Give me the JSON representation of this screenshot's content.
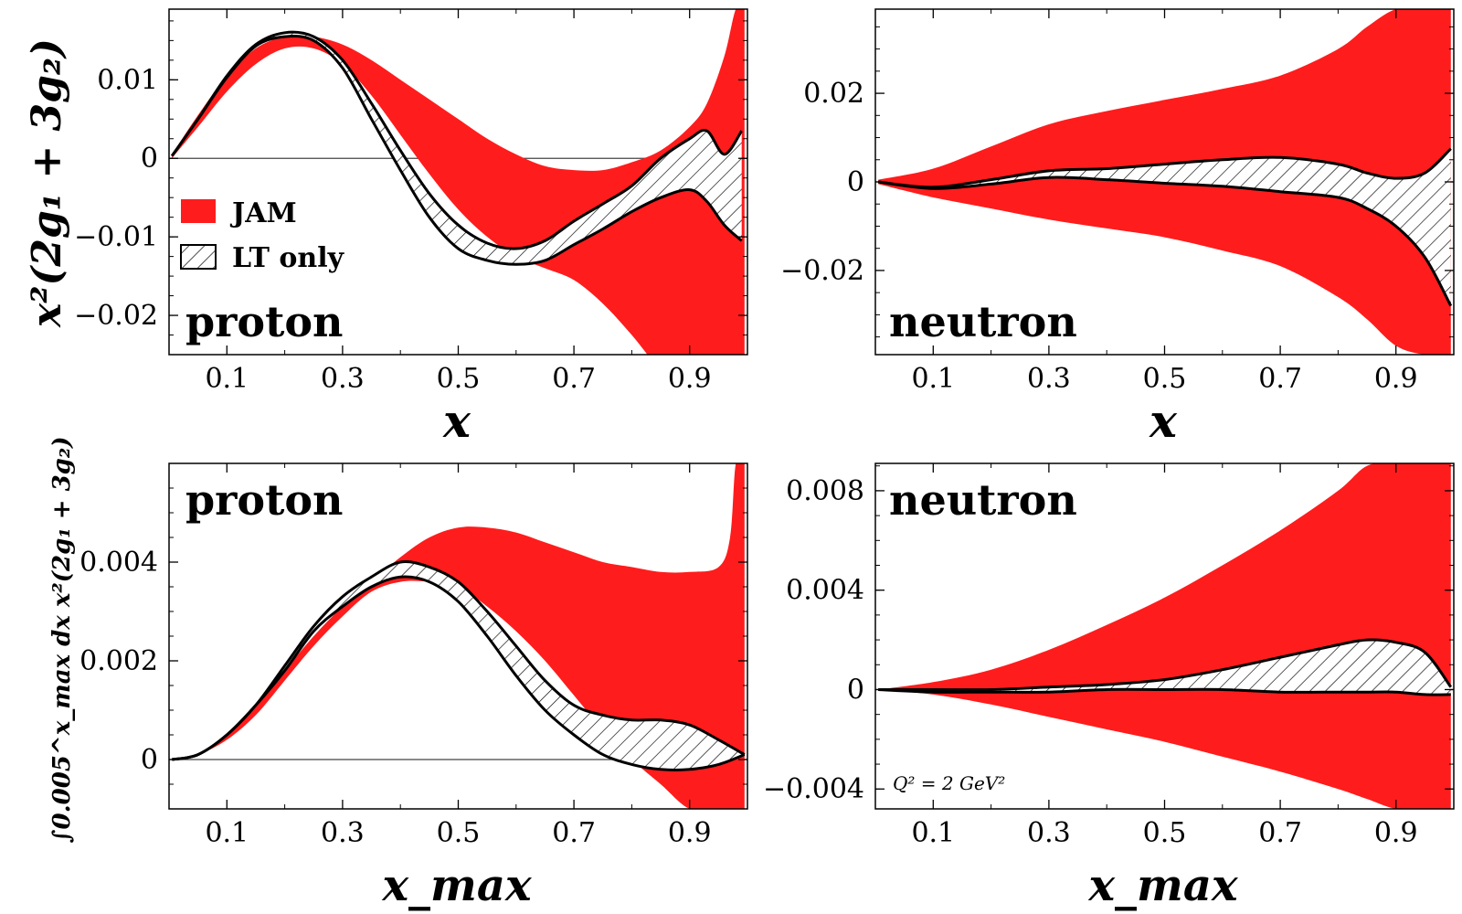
{
  "colors": {
    "jam_band": "#ff1c1c",
    "lt_hatch": "#000000"
  },
  "legend": {
    "jam": "JAM",
    "lt": "LT only"
  },
  "annotation": "Q² = 2 GeV²",
  "chart_data": [
    {
      "type": "area",
      "panel_label": "proton",
      "xlabel": "x",
      "ylabel": "x²(2g₁ + 3g₂)",
      "xlim": [
        0.0,
        1.0
      ],
      "ylim": [
        -0.025,
        0.019
      ],
      "xticks": [
        0.1,
        0.3,
        0.5,
        0.7,
        0.9
      ],
      "xtick_labels": [
        "0.1",
        "0.3",
        "0.5",
        "0.7",
        "0.9"
      ],
      "yticks": [
        -0.02,
        -0.01,
        0,
        0.01
      ],
      "ytick_labels": [
        "−0.02",
        "−0.01",
        "0",
        "0.01"
      ],
      "series": [
        {
          "name": "JAM",
          "x": [
            0.005,
            0.05,
            0.1,
            0.15,
            0.2,
            0.25,
            0.3,
            0.35,
            0.4,
            0.45,
            0.5,
            0.55,
            0.6,
            0.65,
            0.7,
            0.75,
            0.8,
            0.85,
            0.9,
            0.93,
            0.96,
            0.98,
            0.995
          ],
          "upper": [
            0.0005,
            0.0055,
            0.0105,
            0.014,
            0.0155,
            0.0155,
            0.0145,
            0.0125,
            0.01,
            0.0075,
            0.005,
            0.0025,
            0.0005,
            -0.001,
            -0.0015,
            -0.0015,
            -0.0005,
            0.001,
            0.004,
            0.007,
            0.013,
            0.019,
            0.019
          ],
          "lower": [
            0.0,
            0.004,
            0.0085,
            0.012,
            0.014,
            0.014,
            0.012,
            0.008,
            0.003,
            -0.002,
            -0.0065,
            -0.01,
            -0.0125,
            -0.014,
            -0.0155,
            -0.0185,
            -0.0225,
            -0.027,
            -0.03,
            -0.03,
            -0.03,
            -0.03,
            -0.03
          ]
        },
        {
          "name": "LT only",
          "x": [
            0.005,
            0.05,
            0.1,
            0.15,
            0.2,
            0.25,
            0.3,
            0.35,
            0.4,
            0.45,
            0.5,
            0.55,
            0.6,
            0.65,
            0.7,
            0.75,
            0.8,
            0.85,
            0.9,
            0.93,
            0.96,
            0.99
          ],
          "upper": [
            0.0003,
            0.005,
            0.0105,
            0.0145,
            0.016,
            0.0155,
            0.0125,
            0.007,
            0.001,
            -0.0045,
            -0.0085,
            -0.0108,
            -0.0115,
            -0.0105,
            -0.008,
            -0.0058,
            -0.0035,
            0.0,
            0.0025,
            0.0035,
            0.0005,
            0.0035
          ],
          "lower": [
            0.0003,
            0.005,
            0.0103,
            0.0143,
            0.0155,
            0.015,
            0.0115,
            0.005,
            -0.0015,
            -0.0075,
            -0.0115,
            -0.013,
            -0.0135,
            -0.013,
            -0.011,
            -0.009,
            -0.0068,
            -0.005,
            -0.004,
            -0.0055,
            -0.0085,
            -0.0105
          ]
        }
      ],
      "legend": {
        "position": "center-left"
      }
    },
    {
      "type": "area",
      "panel_label": "neutron",
      "xlabel": "x",
      "ylabel": "",
      "xlim": [
        0.0,
        1.0
      ],
      "ylim": [
        -0.039,
        0.039
      ],
      "xticks": [
        0.1,
        0.3,
        0.5,
        0.7,
        0.9
      ],
      "xtick_labels": [
        "0.1",
        "0.3",
        "0.5",
        "0.7",
        "0.9"
      ],
      "yticks": [
        -0.02,
        0,
        0.02
      ],
      "ytick_labels": [
        "−0.02",
        "0",
        "0.02"
      ],
      "series": [
        {
          "name": "JAM",
          "x": [
            0.005,
            0.1,
            0.2,
            0.3,
            0.4,
            0.5,
            0.6,
            0.7,
            0.8,
            0.85,
            0.9,
            0.95,
            0.995
          ],
          "upper": [
            0.0005,
            0.003,
            0.008,
            0.013,
            0.016,
            0.0185,
            0.021,
            0.024,
            0.03,
            0.035,
            0.039,
            0.039,
            0.039
          ],
          "lower": [
            -0.0005,
            -0.0035,
            -0.006,
            -0.0085,
            -0.0105,
            -0.0125,
            -0.0155,
            -0.019,
            -0.026,
            -0.031,
            -0.037,
            -0.039,
            -0.039
          ]
        },
        {
          "name": "LT only",
          "x": [
            0.005,
            0.1,
            0.2,
            0.3,
            0.4,
            0.5,
            0.6,
            0.7,
            0.8,
            0.85,
            0.9,
            0.95,
            0.995
          ],
          "upper": [
            0.0,
            -0.0012,
            0.0005,
            0.0025,
            0.003,
            0.004,
            0.005,
            0.0055,
            0.004,
            0.002,
            0.0008,
            0.002,
            0.0075
          ],
          "lower": [
            0.0,
            -0.0015,
            -0.0005,
            0.001,
            0.0005,
            -0.0003,
            -0.001,
            -0.0022,
            -0.0035,
            -0.006,
            -0.01,
            -0.017,
            -0.028
          ]
        }
      ]
    },
    {
      "type": "area",
      "panel_label": "proton",
      "xlabel": "x_max",
      "ylabel": "∫0.005^x_max dx x²(2g₁ + 3g₂)",
      "xlim": [
        0.0,
        1.0
      ],
      "ylim": [
        -0.001,
        0.006
      ],
      "xticks": [
        0.1,
        0.3,
        0.5,
        0.7,
        0.9
      ],
      "xtick_labels": [
        "0.1",
        "0.3",
        "0.5",
        "0.7",
        "0.9"
      ],
      "yticks": [
        0,
        0.002,
        0.004
      ],
      "ytick_labels": [
        "0",
        "0.002",
        "0.004"
      ],
      "series": [
        {
          "name": "JAM",
          "x": [
            0.005,
            0.05,
            0.1,
            0.15,
            0.2,
            0.25,
            0.3,
            0.35,
            0.4,
            0.45,
            0.5,
            0.55,
            0.6,
            0.65,
            0.7,
            0.75,
            0.8,
            0.85,
            0.9,
            0.95,
            0.97,
            0.98,
            0.995
          ],
          "upper": [
            0.0,
            0.0001,
            0.0005,
            0.0011,
            0.0018,
            0.0025,
            0.0031,
            0.0036,
            0.0041,
            0.0045,
            0.0047,
            0.0047,
            0.0046,
            0.0044,
            0.0042,
            0.004,
            0.0039,
            0.0038,
            0.0038,
            0.0039,
            0.0045,
            0.006,
            0.006
          ],
          "lower": [
            0.0,
            0.0001,
            0.0004,
            0.0009,
            0.0016,
            0.0023,
            0.0029,
            0.0034,
            0.0036,
            0.0036,
            0.0035,
            0.0031,
            0.0026,
            0.002,
            0.0013,
            0.0006,
            0.0,
            -0.0005,
            -0.001,
            -0.001,
            -0.001,
            -0.001,
            -0.001
          ]
        },
        {
          "name": "LT only",
          "x": [
            0.005,
            0.05,
            0.1,
            0.15,
            0.2,
            0.25,
            0.3,
            0.35,
            0.4,
            0.45,
            0.5,
            0.55,
            0.6,
            0.65,
            0.7,
            0.75,
            0.8,
            0.85,
            0.9,
            0.95,
            0.995
          ],
          "upper": [
            0.0,
            0.0001,
            0.0005,
            0.0011,
            0.0019,
            0.0027,
            0.0033,
            0.0037,
            0.004,
            0.0039,
            0.0036,
            0.003,
            0.0023,
            0.0016,
            0.0011,
            0.0009,
            0.0008,
            0.0008,
            0.0007,
            0.0004,
            0.0001
          ],
          "lower": [
            0.0,
            0.0001,
            0.0005,
            0.0011,
            0.0018,
            0.0026,
            0.0031,
            0.0035,
            0.0037,
            0.0036,
            0.0032,
            0.0025,
            0.0017,
            0.001,
            0.0005,
            0.0001,
            -0.0001,
            -0.0002,
            -0.0002,
            -0.0001,
            0.0001
          ]
        }
      ]
    },
    {
      "type": "area",
      "panel_label": "neutron",
      "xlabel": "x_max",
      "ylabel": "",
      "xlim": [
        0.0,
        1.0
      ],
      "ylim": [
        -0.0048,
        0.0091
      ],
      "xticks": [
        0.1,
        0.3,
        0.5,
        0.7,
        0.9
      ],
      "xtick_labels": [
        "0.1",
        "0.3",
        "0.5",
        "0.7",
        "0.9"
      ],
      "yticks": [
        -0.004,
        0,
        0.004,
        0.008
      ],
      "ytick_labels": [
        "−0.004",
        "0",
        "0.004",
        "0.008"
      ],
      "annotation": "Q² = 2 GeV²",
      "series": [
        {
          "name": "JAM",
          "x": [
            0.005,
            0.1,
            0.2,
            0.3,
            0.4,
            0.5,
            0.6,
            0.7,
            0.8,
            0.85,
            0.9,
            0.95,
            0.995
          ],
          "upper": [
            0.0,
            0.0003,
            0.0008,
            0.0016,
            0.0026,
            0.0037,
            0.005,
            0.0064,
            0.008,
            0.009,
            0.0091,
            0.0091,
            0.0091
          ],
          "lower": [
            0.0,
            -0.0002,
            -0.0006,
            -0.0011,
            -0.0016,
            -0.0021,
            -0.0027,
            -0.0033,
            -0.004,
            -0.0044,
            -0.0048,
            -0.0048,
            -0.0048
          ]
        },
        {
          "name": "LT only",
          "x": [
            0.005,
            0.1,
            0.2,
            0.3,
            0.4,
            0.5,
            0.6,
            0.7,
            0.8,
            0.85,
            0.9,
            0.95,
            0.995
          ],
          "upper": [
            0.0,
            0.0,
            0.0,
            0.0001,
            0.0002,
            0.0004,
            0.0008,
            0.0013,
            0.0018,
            0.002,
            0.0019,
            0.0015,
            0.0001
          ],
          "lower": [
            0.0,
            -0.0001,
            -0.0001,
            -0.0001,
            0.0,
            0.0,
            0.0,
            -0.0001,
            -0.0001,
            -0.0001,
            -0.0001,
            -0.0002,
            -0.0002
          ]
        }
      ]
    }
  ]
}
